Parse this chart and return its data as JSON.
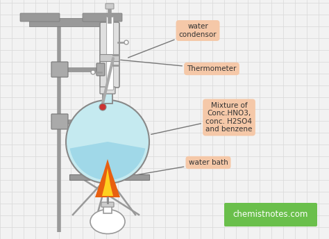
{
  "bg_color": "#f2f2f2",
  "grid_color": "#d8d8d8",
  "stand_color": "#999999",
  "flask_fill": "#c5eaf0",
  "flask_edge": "#888888",
  "liquid_fill": "#a0d8e8",
  "label_bg": "#f5c8a8",
  "label_green_bg": "#6abf4b",
  "label_text_color": "#333333",
  "flame_orange": "#e86010",
  "flame_yellow": "#ffd020",
  "labels": {
    "water_condensor": "water\ncondensor",
    "thermometer": "Thermometer",
    "mixture": "Mixture of\nConc.HNO3,\nconc. H2SO4\nand benzene",
    "water_bath": "water bath",
    "website": "chemistnotes.com"
  },
  "figsize": [
    4.74,
    3.44
  ],
  "dpi": 100
}
